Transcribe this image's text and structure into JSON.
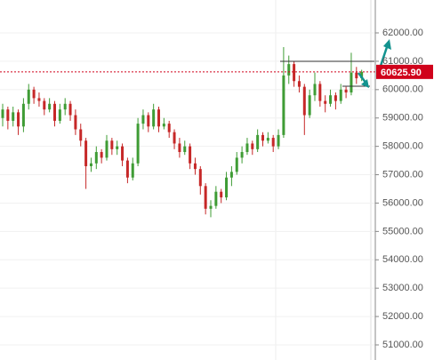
{
  "chart_data": {
    "type": "candlestick",
    "up_color": "#3f9c35",
    "down_color": "#c62828",
    "ylim": [
      50467,
      63160
    ],
    "yticks": [
      {
        "value": 51000,
        "label": "51000.00"
      },
      {
        "value": 52000,
        "label": "52000.00"
      },
      {
        "value": 53000,
        "label": "53000.00"
      },
      {
        "value": 54000,
        "label": "54000.00"
      },
      {
        "value": 55000,
        "label": "55000.00"
      },
      {
        "value": 56000,
        "label": "56000.00"
      },
      {
        "value": 57000,
        "label": "57000.00"
      },
      {
        "value": 58000,
        "label": "58000.00"
      },
      {
        "value": 59000,
        "label": "59000.00"
      },
      {
        "value": 60000,
        "label": "60000.00"
      },
      {
        "value": 61000,
        "label": "61000.00"
      },
      {
        "value": 62000,
        "label": "62000.00"
      }
    ],
    "grid": true,
    "last_price": {
      "value": 60625.9,
      "label": "60625.90",
      "color": "#d0021b"
    },
    "open": [
      59000,
      59300,
      58900,
      59200,
      58700,
      59500,
      60000,
      59700,
      59600,
      59300,
      59500,
      58900,
      59300,
      59500,
      59100,
      58600,
      58200,
      57300,
      57400,
      57800,
      57600,
      58200,
      57900,
      58000,
      57500,
      56900,
      57400,
      58800,
      59100,
      58700,
      59300,
      58700,
      58800,
      58500,
      58100,
      57800,
      58000,
      57400,
      57200,
      56600,
      55800,
      55900,
      56400,
      56200,
      56900,
      57100,
      57600,
      57800,
      58100,
      57900,
      58400,
      58200,
      58300,
      58000,
      58400,
      60500,
      60900,
      60300,
      60100,
      59100,
      59800,
      60200,
      59600,
      59500,
      59800,
      59600,
      60000,
      59900,
      60600,
      60400
    ],
    "high": [
      59500,
      59400,
      59400,
      59300,
      59700,
      60200,
      60100,
      59900,
      59700,
      59700,
      59600,
      59500,
      59700,
      59600,
      59300,
      58800,
      58300,
      57600,
      58000,
      57900,
      58400,
      58300,
      58200,
      58100,
      57600,
      57600,
      59000,
      59300,
      59200,
      59500,
      59400,
      59000,
      58900,
      58600,
      58300,
      58200,
      58100,
      57600,
      57300,
      56700,
      56100,
      56600,
      56500,
      57100,
      57300,
      57800,
      58000,
      58300,
      58200,
      58600,
      58500,
      58500,
      58400,
      58600,
      61500,
      61200,
      61000,
      60500,
      60200,
      60000,
      60600,
      60300,
      59800,
      60000,
      59900,
      60200,
      60100,
      61300,
      60800,
      60700
    ],
    "low": [
      58700,
      58600,
      58700,
      58400,
      58500,
      59300,
      59500,
      59400,
      59100,
      59200,
      58700,
      58800,
      59100,
      58900,
      58400,
      58000,
      56500,
      57100,
      57200,
      57400,
      57500,
      57700,
      57700,
      57300,
      56700,
      56800,
      57300,
      58600,
      58500,
      58600,
      58500,
      58600,
      58300,
      57900,
      57600,
      57700,
      57200,
      57000,
      56300,
      55600,
      55500,
      55800,
      56000,
      56100,
      56600,
      57000,
      57400,
      57700,
      57700,
      57800,
      58000,
      58100,
      57800,
      57900,
      58300,
      60200,
      60100,
      59900,
      58400,
      59000,
      59600,
      59400,
      59200,
      59400,
      59300,
      59500,
      59700,
      59800,
      60200,
      60300
    ],
    "close": [
      59300,
      58900,
      59200,
      58700,
      59500,
      60000,
      59700,
      59600,
      59300,
      59500,
      58900,
      59300,
      59500,
      59100,
      58600,
      58200,
      57300,
      57400,
      57800,
      57600,
      58200,
      57900,
      58000,
      57500,
      56900,
      57400,
      58800,
      59100,
      58700,
      59300,
      58700,
      58800,
      58500,
      58100,
      57800,
      58000,
      57400,
      57200,
      56600,
      55800,
      55900,
      56400,
      56200,
      56900,
      57100,
      57600,
      57800,
      58100,
      57900,
      58400,
      58200,
      58300,
      58000,
      58400,
      60500,
      60900,
      60300,
      60100,
      59100,
      59800,
      60200,
      59600,
      59500,
      59800,
      59600,
      60000,
      59900,
      60600,
      60400,
      60625.9
    ]
  }
}
